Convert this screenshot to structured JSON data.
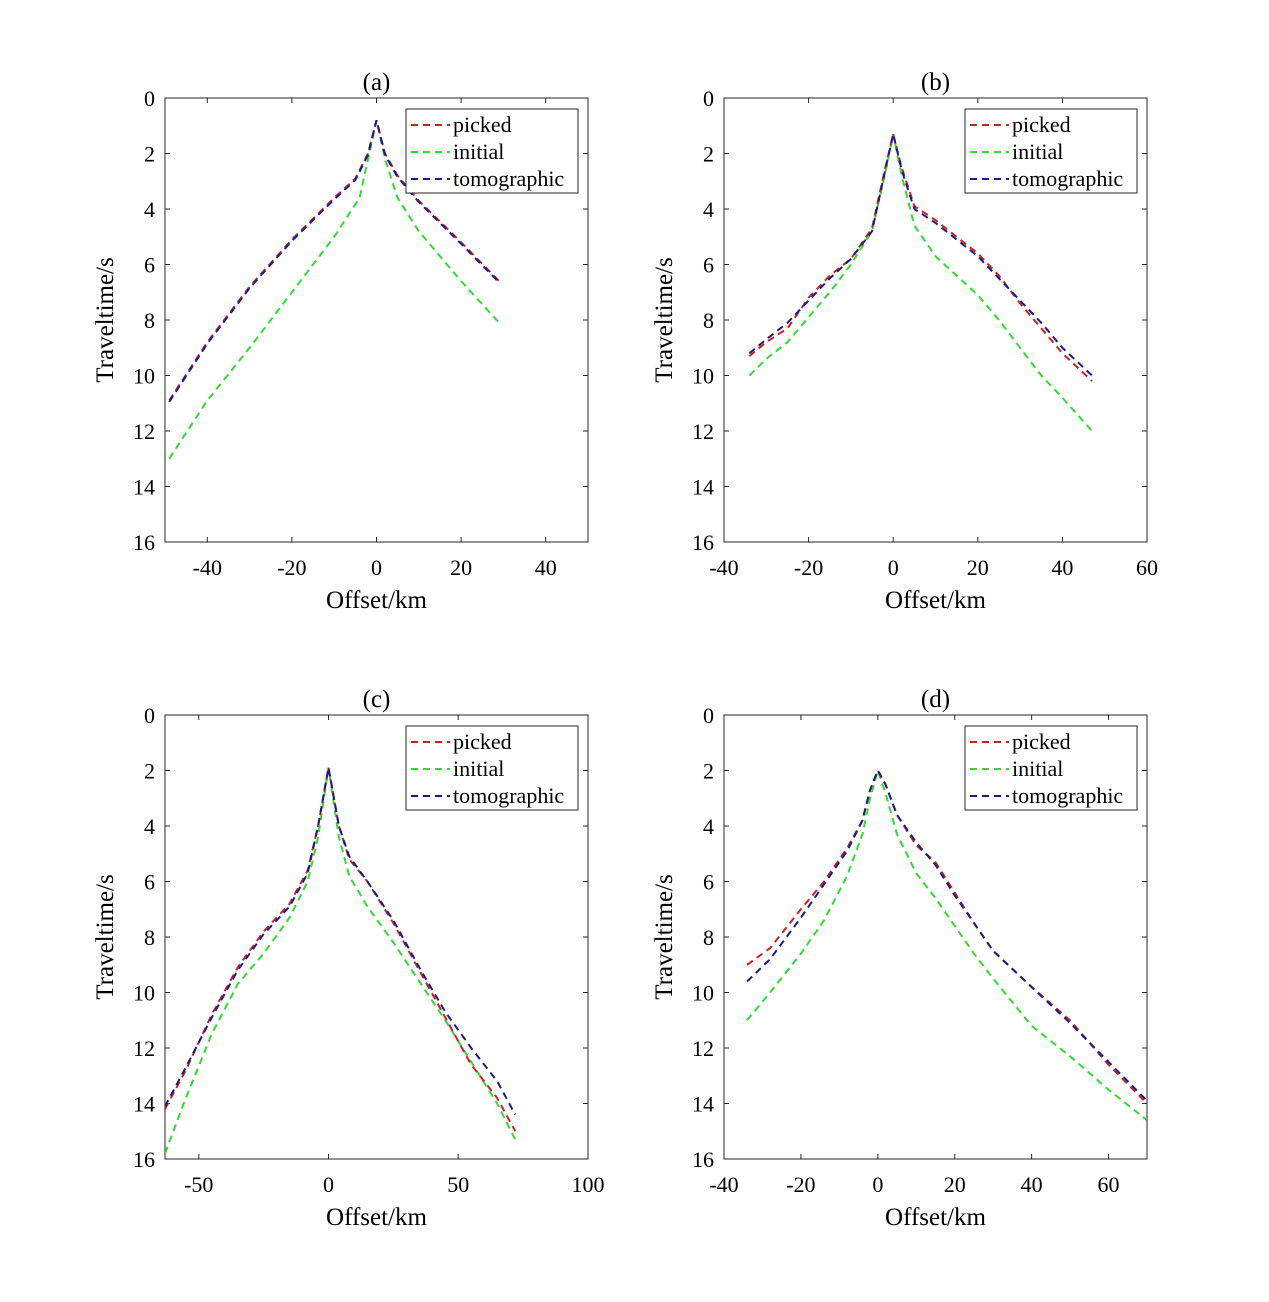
{
  "chart_data": [
    {
      "type": "line",
      "title": "(a)",
      "xlabel": "Offset/km",
      "ylabel": "Traveltime/s",
      "xlim": [
        -50,
        50
      ],
      "ylim": [
        0,
        16
      ],
      "y_reversed": true,
      "xticks": [
        -40,
        -20,
        0,
        20,
        40
      ],
      "yticks": [
        0,
        2,
        4,
        6,
        8,
        10,
        12,
        14,
        16
      ],
      "grid": false,
      "legend_position": "top-right",
      "series": [
        {
          "name": "picked",
          "color": "#cc1f1f",
          "x": [
            -49,
            -40,
            -30,
            -20,
            -10,
            -5,
            -2,
            0,
            2,
            5,
            10,
            20,
            29
          ],
          "y": [
            10.9,
            8.8,
            6.8,
            5.1,
            3.6,
            2.9,
            2.0,
            0.8,
            2.0,
            2.8,
            3.7,
            5.2,
            6.6
          ]
        },
        {
          "name": "initial",
          "color": "#2ddc2d",
          "x": [
            -49,
            -40,
            -30,
            -20,
            -10,
            -4,
            -2,
            0,
            2,
            5,
            10,
            20,
            29
          ],
          "y": [
            13.0,
            10.9,
            9.0,
            7.0,
            5.0,
            3.6,
            2.2,
            0.8,
            2.2,
            3.6,
            4.8,
            6.6,
            8.1
          ]
        },
        {
          "name": "tomographic",
          "color": "#1a1a8c",
          "x": [
            -49,
            -40,
            -30,
            -20,
            -10,
            -5,
            -2,
            0,
            2,
            5,
            10,
            20,
            29
          ],
          "y": [
            10.95,
            8.85,
            6.85,
            5.15,
            3.65,
            2.95,
            2.05,
            0.8,
            2.05,
            2.85,
            3.75,
            5.25,
            6.65
          ]
        }
      ]
    },
    {
      "type": "line",
      "title": "(b)",
      "xlabel": "Offset/km",
      "ylabel": "Traveltime/s",
      "xlim": [
        -40,
        60
      ],
      "ylim": [
        0,
        16
      ],
      "y_reversed": true,
      "xticks": [
        -40,
        -20,
        0,
        20,
        40,
        60
      ],
      "yticks": [
        0,
        2,
        4,
        6,
        8,
        10,
        12,
        14,
        16
      ],
      "grid": false,
      "legend_position": "top-right",
      "series": [
        {
          "name": "picked",
          "color": "#cc1f1f",
          "x": [
            -34,
            -30,
            -25,
            -20,
            -15,
            -10,
            -5,
            -2,
            0,
            2,
            5,
            10,
            15,
            20,
            25,
            30,
            35,
            40,
            47
          ],
          "y": [
            9.3,
            8.8,
            8.3,
            7.2,
            6.4,
            5.8,
            4.7,
            2.6,
            1.3,
            2.5,
            3.9,
            4.4,
            5.0,
            5.6,
            6.4,
            7.4,
            8.3,
            9.2,
            10.2
          ]
        },
        {
          "name": "initial",
          "color": "#2ddc2d",
          "x": [
            -34,
            -30,
            -25,
            -20,
            -15,
            -10,
            -5,
            -2,
            0,
            2,
            5,
            10,
            15,
            20,
            25,
            30,
            35,
            40,
            47
          ],
          "y": [
            10.0,
            9.4,
            8.8,
            7.9,
            7.0,
            6.0,
            4.8,
            2.8,
            1.3,
            2.8,
            4.6,
            5.7,
            6.4,
            7.1,
            8.0,
            9.0,
            10.0,
            10.8,
            12.0
          ]
        },
        {
          "name": "tomographic",
          "color": "#1a1a8c",
          "x": [
            -34,
            -30,
            -25,
            -20,
            -15,
            -10,
            -5,
            -2,
            0,
            2,
            5,
            10,
            15,
            20,
            25,
            30,
            35,
            40,
            47
          ],
          "y": [
            9.2,
            8.7,
            8.1,
            7.3,
            6.5,
            5.8,
            4.8,
            2.7,
            1.3,
            2.6,
            4.0,
            4.5,
            5.1,
            5.7,
            6.5,
            7.3,
            8.1,
            9.0,
            10.0
          ]
        }
      ]
    },
    {
      "type": "line",
      "title": "(c)",
      "xlabel": "Offset/km",
      "ylabel": "Traveltime/s",
      "xlim": [
        -63,
        100
      ],
      "ylim": [
        0,
        16
      ],
      "y_reversed": true,
      "xticks": [
        -50,
        0,
        50,
        100
      ],
      "yticks": [
        0,
        2,
        4,
        6,
        8,
        10,
        12,
        14,
        16
      ],
      "grid": false,
      "legend_position": "top-right",
      "series": [
        {
          "name": "picked",
          "color": "#cc1f1f",
          "x": [
            -63,
            -55,
            -45,
            -35,
            -25,
            -15,
            -8,
            -4,
            0,
            4,
            8,
            15,
            25,
            35,
            45,
            55,
            65,
            72
          ],
          "y": [
            14.2,
            12.8,
            10.8,
            9.1,
            7.8,
            6.8,
            5.6,
            4.0,
            1.9,
            4.0,
            5.2,
            6.0,
            7.5,
            9.2,
            10.9,
            12.6,
            13.8,
            15.0
          ]
        },
        {
          "name": "initial",
          "color": "#2ddc2d",
          "x": [
            -63,
            -55,
            -45,
            -35,
            -25,
            -15,
            -8,
            -4,
            0,
            4,
            8,
            15,
            25,
            35,
            45,
            55,
            65,
            72
          ],
          "y": [
            15.8,
            13.8,
            11.5,
            9.7,
            8.6,
            7.3,
            6.0,
            4.4,
            1.9,
            4.4,
            5.8,
            6.9,
            8.2,
            9.6,
            11.0,
            12.5,
            14.0,
            15.3
          ]
        },
        {
          "name": "tomographic",
          "color": "#1a1a8c",
          "x": [
            -63,
            -55,
            -45,
            -35,
            -25,
            -15,
            -8,
            -4,
            0,
            4,
            8,
            15,
            25,
            35,
            45,
            55,
            65,
            72
          ],
          "y": [
            14.1,
            12.7,
            10.9,
            9.2,
            7.9,
            6.9,
            5.7,
            4.0,
            1.9,
            4.0,
            5.1,
            6.0,
            7.4,
            9.1,
            10.7,
            12.0,
            13.2,
            14.4
          ]
        }
      ]
    },
    {
      "type": "line",
      "title": "(d)",
      "xlabel": "Offset/km",
      "ylabel": "Traveltime/s",
      "xlim": [
        -40,
        70
      ],
      "ylim": [
        0,
        16
      ],
      "y_reversed": true,
      "xticks": [
        -40,
        -20,
        0,
        20,
        40,
        60
      ],
      "yticks": [
        0,
        2,
        4,
        6,
        8,
        10,
        12,
        14,
        16
      ],
      "grid": false,
      "legend_position": "top-right",
      "series": [
        {
          "name": "picked",
          "color": "#cc1f1f",
          "x": [
            -34,
            -28,
            -20,
            -14,
            -8,
            -4,
            -2,
            0,
            2,
            5,
            10,
            15,
            20,
            25,
            30,
            40,
            50,
            60,
            70
          ],
          "y": [
            9.0,
            8.4,
            7.0,
            6.0,
            4.8,
            3.8,
            2.7,
            2.0,
            2.5,
            3.6,
            4.7,
            5.3,
            6.4,
            7.5,
            8.5,
            9.8,
            11.0,
            12.6,
            14.0
          ]
        },
        {
          "name": "initial",
          "color": "#2ddc2d",
          "x": [
            -34,
            -28,
            -20,
            -14,
            -8,
            -4,
            -2,
            0,
            2,
            5,
            10,
            15,
            20,
            25,
            30,
            40,
            50,
            60,
            70
          ],
          "y": [
            11.0,
            10.0,
            8.6,
            7.4,
            5.8,
            4.3,
            3.0,
            2.0,
            2.8,
            4.3,
            5.7,
            6.6,
            7.6,
            8.6,
            9.5,
            11.2,
            12.3,
            13.5,
            14.6
          ]
        },
        {
          "name": "tomographic",
          "color": "#1a1a8c",
          "x": [
            -34,
            -28,
            -20,
            -14,
            -8,
            -4,
            -2,
            0,
            2,
            5,
            10,
            15,
            20,
            25,
            30,
            40,
            50,
            60,
            70
          ],
          "y": [
            9.6,
            8.8,
            7.3,
            6.1,
            4.9,
            3.8,
            2.7,
            2.0,
            2.5,
            3.6,
            4.6,
            5.4,
            6.5,
            7.5,
            8.5,
            9.8,
            11.1,
            12.5,
            13.9
          ]
        }
      ]
    }
  ]
}
